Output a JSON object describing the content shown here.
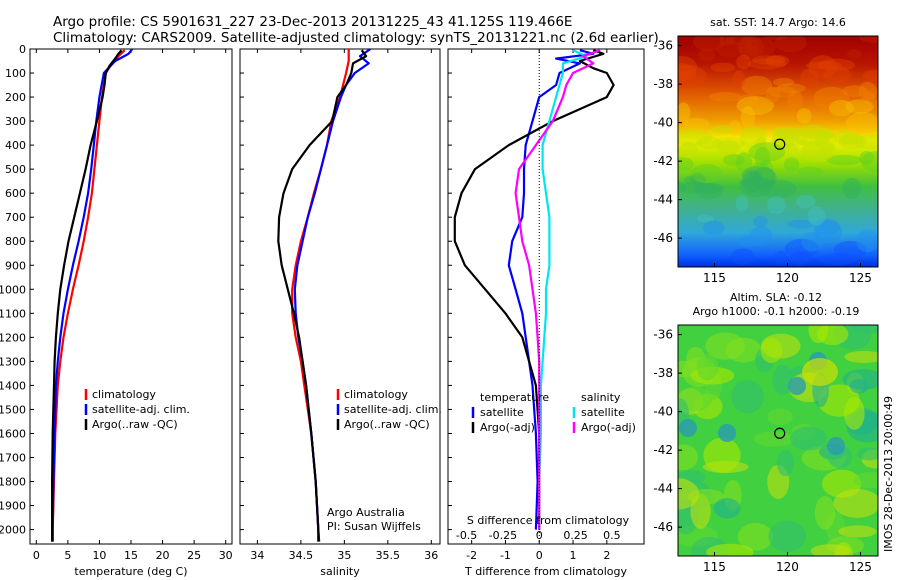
{
  "header": {
    "title1": "Argo profile: CS 5901631_227 23-Dec-2013 20131225_43 41.125S 119.466E",
    "title2": "Climatology: CARS2009. Satellite-adjusted climatology: synTS_20131221.nc (2.6d earlier)"
  },
  "footer_stamp": "IMOS 28-Dec-2013 20:00:49",
  "colors": {
    "climatology": "#ff0000",
    "satellite": "#0000ff",
    "argo": "#000000",
    "sal_satellite": "#00e5ee",
    "sal_argo": "#ff00ff"
  },
  "chart_data": [
    {
      "type": "line",
      "id": "temperature-profile",
      "xlabel": "temperature (deg C)",
      "ylabel": "",
      "xlim": [
        -1,
        31
      ],
      "ylim": [
        2060,
        0
      ],
      "xticks": [
        0,
        5,
        10,
        15,
        20,
        25,
        30
      ],
      "xticklabels": [
        "0",
        "5",
        "10",
        "15",
        "20",
        "25",
        "30"
      ],
      "yticks": [
        0,
        100,
        200,
        300,
        400,
        500,
        600,
        700,
        800,
        900,
        1000,
        1100,
        1200,
        1300,
        1400,
        1500,
        1600,
        1700,
        1800,
        1900,
        2000
      ],
      "yticklabels": [
        "0",
        "100",
        "200",
        "300",
        "400",
        "500",
        "600",
        "700",
        "800",
        "900",
        "1000",
        "1100",
        "1200",
        "1300",
        "1400",
        "1500",
        "1600",
        "1700",
        "1800",
        "1900",
        "2000"
      ],
      "legend": [
        "climatology",
        "satellite-adj. clim.",
        "Argo(..raw -QC)"
      ],
      "series": [
        {
          "name": "climatology",
          "color": "#ff0000",
          "depth": [
            5,
            30,
            60,
            100,
            200,
            300,
            400,
            500,
            600,
            700,
            800,
            900,
            1000,
            1100,
            1200,
            1300,
            1400,
            1600,
            1800,
            2000,
            2050
          ],
          "values": [
            14.0,
            13.0,
            12.0,
            11.0,
            10.4,
            10.0,
            9.6,
            9.2,
            8.8,
            8.2,
            7.5,
            6.7,
            5.8,
            5.0,
            4.3,
            3.8,
            3.4,
            3.0,
            2.8,
            2.6,
            2.6
          ]
        },
        {
          "name": "satellite-adj. clim.",
          "color": "#0000ff",
          "depth": [
            0,
            20,
            50,
            80,
            100,
            200,
            300,
            400,
            500,
            600,
            700,
            800,
            900,
            1000,
            1100,
            1200,
            1300,
            1400,
            1600,
            1800,
            2000,
            2050
          ],
          "values": [
            15.2,
            14.6,
            12.5,
            11.4,
            10.7,
            10.0,
            9.5,
            9.1,
            8.7,
            8.2,
            7.5,
            6.7,
            5.8,
            5.0,
            4.3,
            3.8,
            3.4,
            3.1,
            2.9,
            2.7,
            2.6,
            2.6
          ]
        },
        {
          "name": "Argo(..raw -QC)",
          "color": "#000000",
          "depth": [
            5,
            20,
            40,
            70,
            100,
            150,
            200,
            300,
            400,
            500,
            600,
            700,
            800,
            900,
            1000,
            1100,
            1200,
            1300,
            1400,
            1600,
            1800,
            2000,
            2050
          ],
          "values": [
            13.5,
            13.0,
            12.5,
            11.6,
            11.0,
            10.8,
            10.5,
            9.6,
            8.6,
            7.8,
            6.9,
            6.0,
            5.1,
            4.4,
            3.8,
            3.4,
            3.1,
            2.9,
            2.8,
            2.6,
            2.5,
            2.5,
            2.5
          ]
        }
      ]
    },
    {
      "type": "line",
      "id": "salinity-profile",
      "xlabel": "salinity",
      "xlim": [
        33.8,
        36.1
      ],
      "ylim": [
        2060,
        0
      ],
      "xticks": [
        34,
        34.5,
        35,
        35.5,
        36
      ],
      "xticklabels": [
        "34",
        "34.5",
        "35",
        "35.5",
        "36"
      ],
      "legend": [
        "climatology",
        "satellite-adj. clim.",
        "Argo(..raw -QC)"
      ],
      "annotation": [
        "Argo Australia",
        "PI: Susan Wijffels"
      ],
      "series": [
        {
          "name": "climatology",
          "color": "#ff0000",
          "depth": [
            0,
            50,
            100,
            200,
            300,
            400,
            500,
            600,
            700,
            800,
            900,
            1000,
            1100,
            1200,
            1300,
            1400,
            1500,
            1600,
            1800,
            2000,
            2050
          ],
          "values": [
            35.05,
            35.05,
            35.02,
            34.95,
            34.85,
            34.8,
            34.73,
            34.65,
            34.58,
            34.5,
            34.44,
            34.4,
            34.4,
            34.44,
            34.5,
            34.54,
            34.58,
            34.62,
            34.67,
            34.7,
            34.71
          ]
        },
        {
          "name": "satellite-adj. clim.",
          "color": "#0000ff",
          "depth": [
            0,
            30,
            60,
            100,
            150,
            200,
            300,
            400,
            500,
            600,
            700,
            800,
            900,
            1000,
            1100,
            1200,
            1300,
            1400,
            1600,
            1800,
            2000,
            2050
          ],
          "values": [
            35.3,
            35.18,
            35.28,
            35.12,
            35.02,
            34.96,
            34.87,
            34.8,
            34.73,
            34.66,
            34.58,
            34.52,
            34.46,
            34.43,
            34.44,
            34.47,
            34.52,
            34.56,
            34.62,
            34.67,
            34.7,
            34.71
          ]
        },
        {
          "name": "Argo(..raw -QC)",
          "color": "#000000",
          "depth": [
            5,
            30,
            60,
            100,
            150,
            200,
            300,
            400,
            500,
            600,
            700,
            800,
            900,
            1000,
            1100,
            1200,
            1300,
            1400,
            1600,
            1800,
            2000,
            2050
          ],
          "values": [
            35.2,
            35.25,
            35.1,
            35.08,
            35.02,
            34.92,
            34.86,
            34.6,
            34.4,
            34.3,
            34.25,
            34.24,
            34.28,
            34.35,
            34.42,
            34.48,
            34.52,
            34.56,
            34.62,
            34.67,
            34.7,
            34.7
          ]
        }
      ]
    },
    {
      "type": "line",
      "id": "difference-profile",
      "xlabel": "T difference from climatology",
      "xlabel_top": "S difference from climatology",
      "xlim": [
        -2.7,
        3.1
      ],
      "ylim": [
        2060,
        0
      ],
      "xticks": [
        -2,
        -1,
        0,
        1,
        2
      ],
      "xticklabels": [
        "-2",
        "-1",
        "0",
        "1",
        "2"
      ],
      "top_ticks": [
        -0.5,
        -0.25,
        0,
        0.25,
        0.5
      ],
      "top_ticklabels": [
        "-0.5",
        "-0.25",
        "0",
        "0.25",
        "0.5"
      ],
      "legend_temperature": {
        "title": "temperature",
        "items": [
          "satellite",
          "Argo(-adj)"
        ]
      },
      "legend_salinity": {
        "title": "salinity",
        "items": [
          "satellite",
          "Argo(-adj)"
        ]
      },
      "series": [
        {
          "name": "temperature satellite",
          "color": "#0000ff",
          "depth": [
            5,
            20,
            40,
            60,
            100,
            150,
            200,
            300,
            400,
            500,
            600,
            700,
            800,
            900,
            1000,
            1100,
            1200,
            1300,
            1400,
            1600,
            1800,
            2000
          ],
          "values": [
            1.2,
            1.6,
            0.5,
            1.2,
            0.6,
            0.5,
            0,
            -0.2,
            -0.4,
            -0.45,
            -0.45,
            -0.5,
            -0.8,
            -0.9,
            -0.7,
            -0.5,
            -0.4,
            -0.3,
            -0.2,
            -0.1,
            -0.05,
            -0.1
          ]
        },
        {
          "name": "temperature Argo(-adj)",
          "color": "#000000",
          "depth": [
            5,
            20,
            50,
            80,
            100,
            150,
            200,
            300,
            400,
            450,
            500,
            600,
            700,
            800,
            900,
            1000,
            1100,
            1200,
            1300,
            1400,
            1600,
            1800,
            2000
          ],
          "values": [
            1.6,
            1.9,
            1.2,
            1.6,
            2.0,
            2.2,
            2.0,
            0.4,
            -0.9,
            -1.4,
            -1.9,
            -2.3,
            -2.5,
            -2.5,
            -2.2,
            -1.6,
            -1.0,
            -0.5,
            -0.3,
            -0.1,
            0,
            0,
            0
          ]
        },
        {
          "name": "salinity satellite",
          "color": "#00e5ee",
          "depth": [
            5,
            30,
            60,
            100,
            200,
            300,
            400,
            500,
            600,
            700,
            800,
            900,
            1000,
            1100,
            1200,
            1300,
            1400,
            1600,
            1800,
            2000
          ],
          "values": [
            1.0,
            1.4,
            0.7,
            0.7,
            0.5,
            0.3,
            0.1,
            0.1,
            0.2,
            0.3,
            0.3,
            0.3,
            0.2,
            0.2,
            0.15,
            0.1,
            0.05,
            0.05,
            0,
            0
          ]
        },
        {
          "name": "salinity Argo(-adj)",
          "color": "#ff00ff",
          "depth": [
            5,
            30,
            60,
            100,
            150,
            200,
            300,
            400,
            500,
            600,
            700,
            800,
            900,
            1000,
            1100,
            1200,
            1300,
            1400,
            1600,
            1800,
            2000
          ],
          "values": [
            1.8,
            1.3,
            1.6,
            1.0,
            0.8,
            0.7,
            0.4,
            -0.1,
            -0.6,
            -0.7,
            -0.6,
            -0.5,
            -0.3,
            -0.2,
            -0.1,
            -0.05,
            0,
            0,
            0,
            0,
            0
          ]
        }
      ]
    },
    {
      "type": "heatmap",
      "id": "sst-map",
      "title": "sat. SST: 14.7 Argo: 14.6",
      "xlim": [
        112.5,
        126.2
      ],
      "ylim": [
        -47.5,
        -35.5
      ],
      "xticks": [
        115,
        120,
        125
      ],
      "yticks": [
        -36,
        -38,
        -40,
        -42,
        -44,
        -46
      ],
      "marker": {
        "lon": 119.466,
        "lat": -41.125
      }
    },
    {
      "type": "heatmap",
      "id": "sla-map",
      "title": "Altim. SLA: -0.12",
      "subtitle": "Argo h1000: -0.1 h2000: -0.19",
      "xlim": [
        112.5,
        126.2
      ],
      "ylim": [
        -47.5,
        -35.5
      ],
      "xticks": [
        115,
        120,
        125
      ],
      "yticks": [
        -36,
        -38,
        -40,
        -42,
        -44,
        -46
      ],
      "marker": {
        "lon": 119.466,
        "lat": -41.125
      }
    }
  ]
}
